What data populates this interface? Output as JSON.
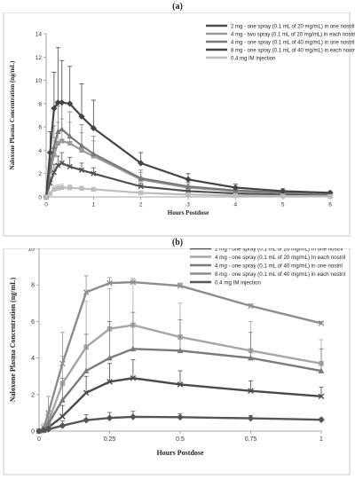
{
  "panel_a": {
    "label": "(a)"
  },
  "panel_b": {
    "label": "(b)"
  },
  "chart_data": [
    {
      "type": "line",
      "panel": "(a)",
      "xlabel": "Hours Postdose",
      "ylabel": "Naloxone Plasma Concentration (ng/mL)",
      "xlim": [
        0,
        6
      ],
      "ylim": [
        0,
        14
      ],
      "xticks": [
        0,
        1,
        2,
        3,
        4,
        5,
        6
      ],
      "yticks": [
        0,
        2,
        4,
        6,
        8,
        10,
        12,
        14
      ],
      "legend_position": "top-right",
      "x": [
        0,
        0.083,
        0.167,
        0.25,
        0.333,
        0.5,
        0.75,
        1,
        2,
        3,
        4,
        5,
        6
      ],
      "series": [
        {
          "name": "2 mg - one spray (0.1 mL of 20 mg/mL) in one nostril",
          "color": "#505050",
          "marker": "x",
          "values": [
            0,
            1.2,
            2.1,
            2.7,
            2.9,
            2.6,
            2.3,
            2.0,
            0.9,
            0.5,
            0.3,
            0.2,
            0.15
          ],
          "err": [
            0,
            0.5,
            0.7,
            0.8,
            0.9,
            0.8,
            0.6,
            0.5,
            0.3,
            0.2,
            0.1,
            0.1,
            0.05
          ]
        },
        {
          "name": "4 mg - two spray (0.1 mL of 20 mg/mL) in each nostril",
          "color": "#9a9a9a",
          "marker": "square",
          "values": [
            0,
            2.2,
            3.6,
            4.6,
            4.8,
            4.6,
            4.0,
            3.5,
            1.5,
            0.8,
            0.5,
            0.35,
            0.25
          ],
          "err": [
            0,
            1.0,
            1.5,
            1.8,
            1.9,
            1.8,
            1.5,
            1.3,
            0.6,
            0.3,
            0.2,
            0.15,
            0.1
          ]
        },
        {
          "name": "4 mg - one spray (0.1 mL of 40 mg/mL) in one nostril",
          "color": "#787878",
          "marker": "triangle",
          "values": [
            0,
            2.6,
            4.3,
            5.6,
            5.8,
            5.2,
            4.4,
            3.7,
            1.6,
            0.9,
            0.55,
            0.38,
            0.28
          ],
          "err": [
            0,
            1.2,
            1.8,
            2.2,
            2.3,
            2.1,
            1.8,
            1.5,
            0.7,
            0.35,
            0.2,
            0.15,
            0.1
          ]
        },
        {
          "name": "8 mg - one spray (0.1 mL of 40 mg/mL) in each nostril",
          "color": "#444444",
          "marker": "diamond",
          "values": [
            0,
            3.8,
            7.6,
            8.1,
            8.1,
            8.0,
            6.9,
            5.9,
            2.9,
            1.5,
            0.8,
            0.5,
            0.35
          ],
          "err": [
            0,
            1.8,
            3.1,
            4.7,
            3.6,
            3.2,
            2.8,
            2.4,
            0.9,
            0.5,
            0.3,
            0.2,
            0.1
          ]
        },
        {
          "name": "0.4 mg IM injection",
          "color": "#bdbdbd",
          "marker": "square",
          "values": [
            0,
            0.3,
            0.65,
            0.75,
            0.8,
            0.78,
            0.72,
            0.65,
            0.35,
            0.2,
            0.12,
            0.08,
            0.05
          ],
          "err": [
            0,
            0.15,
            0.3,
            0.3,
            0.3,
            0.25,
            0.2,
            0.15,
            0.1,
            0.05,
            0.05,
            0.03,
            0.02
          ]
        }
      ]
    },
    {
      "type": "line",
      "panel": "(b)",
      "xlabel": "Hours Postdose",
      "ylabel": "Naloxone Plasma Concentration (ng/mL)",
      "xlim": [
        0,
        1
      ],
      "ylim": [
        0,
        10
      ],
      "xticks": [
        0,
        0.25,
        0.5,
        0.75,
        1
      ],
      "yticks": [
        0,
        2,
        4,
        6,
        8,
        10
      ],
      "legend_position": "top-right",
      "x": [
        0,
        0.017,
        0.033,
        0.083,
        0.167,
        0.25,
        0.333,
        0.5,
        0.75,
        1
      ],
      "series": [
        {
          "name": "2 mg - one spray (0.1 mL of 20 mg/mL) In one nostril",
          "color": "#4a4a4a",
          "marker": "x",
          "values": [
            0,
            0.05,
            0.2,
            0.8,
            2.1,
            2.7,
            2.9,
            2.55,
            2.2,
            1.9
          ],
          "err": [
            0,
            0.05,
            0.15,
            0.6,
            0.9,
            1.0,
            1.0,
            0.75,
            0.55,
            0.5
          ]
        },
        {
          "name": "4 mg - one spray (0.1 mL of 20 mg/mL) In each nostril",
          "color": "#a6a6a6",
          "marker": "square",
          "values": [
            0,
            0.1,
            0.5,
            2.6,
            4.6,
            5.6,
            5.8,
            5.15,
            4.4,
            3.7
          ],
          "err": [
            0,
            0.1,
            0.5,
            1.5,
            2.5,
            2.2,
            2.3,
            1.85,
            1.6,
            1.3
          ]
        },
        {
          "name": "4 mg - one spray (0.1 mL of 40 mg/mL) in one nostril",
          "color": "#7a7a7a",
          "marker": "triangle",
          "values": [
            0,
            0.1,
            0.4,
            1.7,
            3.3,
            4.0,
            4.5,
            4.4,
            4.0,
            3.3
          ],
          "err": [
            0,
            0.1,
            0.4,
            1.2,
            2.0,
            2.0,
            2.0,
            1.7,
            1.4,
            1.2
          ]
        },
        {
          "name": "8 mg - one spray (0.1 mL of 40 mg/mL) in each nostril",
          "color": "#8c8c8c",
          "marker": "x",
          "values": [
            0,
            0.2,
            1.0,
            3.7,
            7.6,
            8.1,
            8.15,
            7.95,
            6.85,
            5.9
          ],
          "err": [
            0,
            0.2,
            0.9,
            1.7,
            0.9,
            0.3,
            0.2,
            0.15,
            0.1,
            0.1
          ]
        },
        {
          "name": "0.4 mg IM injection",
          "color": "#555555",
          "marker": "diamond",
          "values": [
            0,
            0.05,
            0.1,
            0.3,
            0.6,
            0.72,
            0.78,
            0.76,
            0.7,
            0.62
          ],
          "err": [
            0,
            0.05,
            0.1,
            0.25,
            0.3,
            0.3,
            0.3,
            0.2,
            0.15,
            0.1
          ]
        }
      ]
    }
  ]
}
